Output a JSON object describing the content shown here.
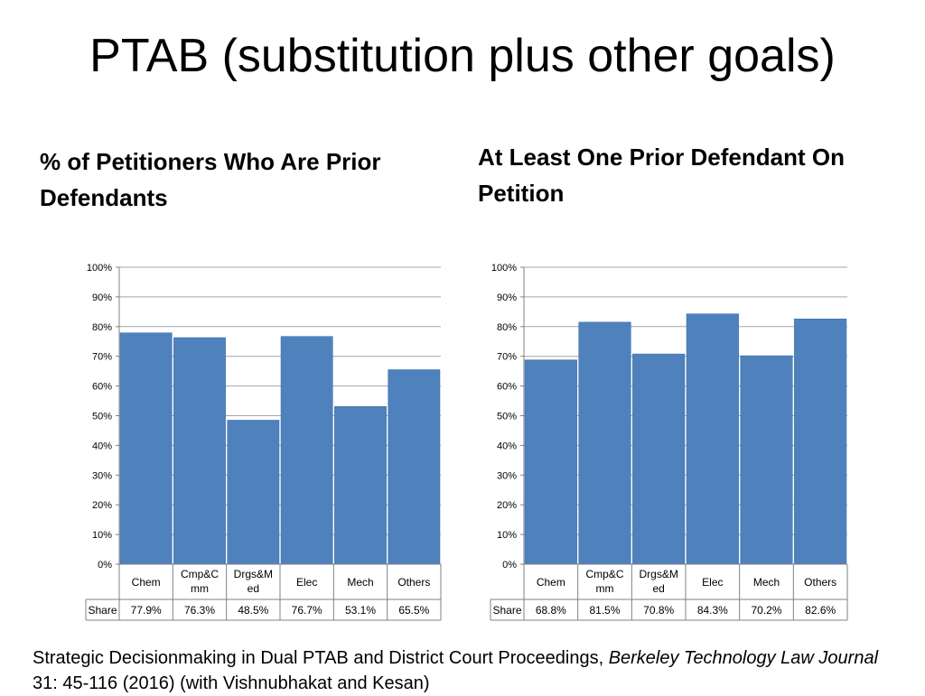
{
  "title": "PTAB (substitution plus other goals)",
  "subtitles": {
    "left": "% of Petitioners Who Are Prior Defendants",
    "right": "At Least One Prior Defendant On Petition"
  },
  "citation": {
    "text1": "Strategic Decisionmaking in Dual PTAB and District Court Proceedings, ",
    "journal": "Berkeley Technology Law Journal",
    "text2": " 31: 45-116 (2016) (with Vishnubhakat and Kesan)"
  },
  "colors": {
    "bar": "#4F81BD",
    "bar_edge": "#3A6EA8",
    "grid": "#A6A6A6",
    "axis": "#808080"
  },
  "chart_data": [
    {
      "type": "bar",
      "title": "% of Petitioners Who Are Prior Defendants",
      "categories": [
        [
          "Chem"
        ],
        [
          "Cmp&C",
          "mm"
        ],
        [
          "Drgs&M",
          "ed"
        ],
        [
          "Elec"
        ],
        [
          "Mech"
        ],
        [
          "Others"
        ]
      ],
      "values": [
        77.9,
        76.3,
        48.5,
        76.7,
        53.1,
        65.5
      ],
      "table_label": "Share",
      "table_values": [
        "77.9%",
        "76.3%",
        "48.5%",
        "76.7%",
        "53.1%",
        "65.5%"
      ],
      "y_ticks": [
        "0%",
        "10%",
        "20%",
        "30%",
        "40%",
        "50%",
        "60%",
        "70%",
        "80%",
        "90%",
        "100%"
      ],
      "ylim": [
        0,
        100
      ],
      "grid": true
    },
    {
      "type": "bar",
      "title": "At Least One Prior Defendant On Petition",
      "categories": [
        [
          "Chem"
        ],
        [
          "Cmp&C",
          "mm"
        ],
        [
          "Drgs&M",
          "ed"
        ],
        [
          "Elec"
        ],
        [
          "Mech"
        ],
        [
          "Others"
        ]
      ],
      "values": [
        68.8,
        81.5,
        70.8,
        84.3,
        70.2,
        82.6
      ],
      "table_label": "Share",
      "table_values": [
        "68.8%",
        "81.5%",
        "70.8%",
        "84.3%",
        "70.2%",
        "82.6%"
      ],
      "y_ticks": [
        "0%",
        "10%",
        "20%",
        "30%",
        "40%",
        "50%",
        "60%",
        "70%",
        "80%",
        "90%",
        "100%"
      ],
      "ylim": [
        0,
        100
      ],
      "grid": true
    }
  ]
}
